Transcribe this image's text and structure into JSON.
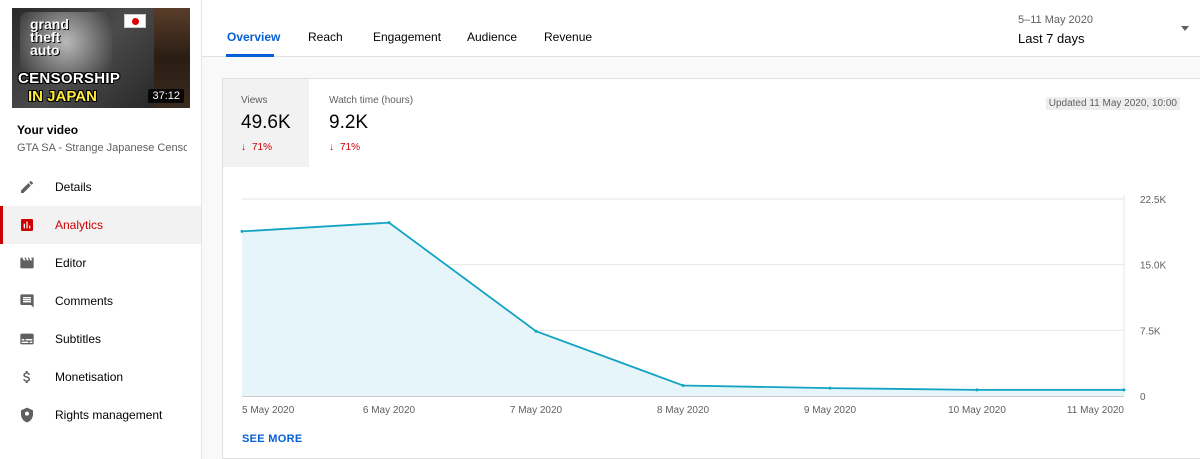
{
  "sidebar": {
    "thumbnail": {
      "title_line1": "CENSORSHIP",
      "title_line2": "IN JAPAN",
      "logo_text_1": "grand",
      "logo_text_2": "theft",
      "logo_text_3": "auto",
      "duration": "37:12"
    },
    "your_video_label": "Your video",
    "video_title": "GTA SA - Strange Japanese Censor...",
    "items": [
      {
        "label": "Details",
        "icon": "pencil-icon"
      },
      {
        "label": "Analytics",
        "icon": "analytics-icon",
        "active": true
      },
      {
        "label": "Editor",
        "icon": "film-icon"
      },
      {
        "label": "Comments",
        "icon": "comment-icon"
      },
      {
        "label": "Subtitles",
        "icon": "subtitles-icon"
      },
      {
        "label": "Monetisation",
        "icon": "dollar-icon"
      },
      {
        "label": "Rights management",
        "icon": "shield-icon"
      }
    ]
  },
  "tabs": {
    "items": [
      "Overview",
      "Reach",
      "Engagement",
      "Audience",
      "Revenue"
    ],
    "active": "Overview"
  },
  "date_range": {
    "dates": "5–11 May 2020",
    "label": "Last 7 days"
  },
  "metrics": {
    "views": {
      "label": "Views",
      "value": "49.6K",
      "change": "71%"
    },
    "watch_time": {
      "label": "Watch time (hours)",
      "value": "9.2K",
      "change": "71%"
    }
  },
  "updated": "Updated 11 May 2020, 10:00",
  "see_more": "SEE MORE",
  "colors": {
    "accent": "#065fd4",
    "red": "#cc0000",
    "line": "#12a4c2",
    "area": "#e5f5f9"
  },
  "chart_data": {
    "type": "area",
    "categories": [
      "5 May 2020",
      "6 May 2020",
      "7 May 2020",
      "8 May 2020",
      "9 May 2020",
      "10 May 2020",
      "11 May 2020"
    ],
    "series": [
      {
        "values": [
          18800,
          19800,
          7400,
          1200,
          900,
          700,
          700
        ]
      }
    ],
    "ylim": [
      0,
      22500
    ],
    "y_ticks": [
      0,
      7500,
      15000,
      22500
    ],
    "y_tick_labels": [
      "0",
      "7.5K",
      "15.0K",
      "22.5K"
    ],
    "grid": true
  }
}
